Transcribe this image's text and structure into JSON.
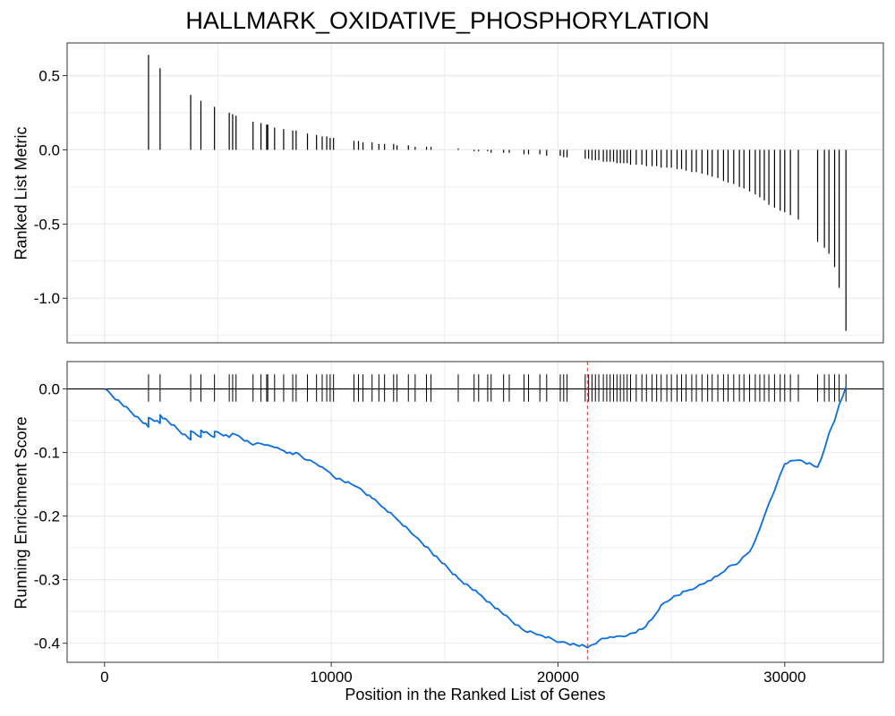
{
  "title": "HALLMARK_OXIDATIVE_PHOSPHORYLATION",
  "chart_data": [
    {
      "panel": "ranked-list-metric",
      "type": "bar",
      "ylabel": "Ranked List Metric",
      "xlabel": "",
      "xlim": [
        -1650,
        34350
      ],
      "ylim": [
        -1.3,
        0.72
      ],
      "y_ticks": [
        0.5,
        0.0,
        -0.5,
        -1.0
      ],
      "y_tick_labels": [
        "0.5",
        "0.0",
        "-0.5",
        "-1.0"
      ],
      "grid": true,
      "hits": [
        {
          "x": 1940,
          "y": 0.64
        },
        {
          "x": 2450,
          "y": 0.55
        },
        {
          "x": 3800,
          "y": 0.37
        },
        {
          "x": 4250,
          "y": 0.33
        },
        {
          "x": 4850,
          "y": 0.29
        },
        {
          "x": 5500,
          "y": 0.25
        },
        {
          "x": 5650,
          "y": 0.24
        },
        {
          "x": 5800,
          "y": 0.23
        },
        {
          "x": 6550,
          "y": 0.19
        },
        {
          "x": 6900,
          "y": 0.18
        },
        {
          "x": 7150,
          "y": 0.17
        },
        {
          "x": 7200,
          "y": 0.17
        },
        {
          "x": 7500,
          "y": 0.15
        },
        {
          "x": 7900,
          "y": 0.14
        },
        {
          "x": 8300,
          "y": 0.13
        },
        {
          "x": 8450,
          "y": 0.13
        },
        {
          "x": 8950,
          "y": 0.11
        },
        {
          "x": 9350,
          "y": 0.1
        },
        {
          "x": 9600,
          "y": 0.09
        },
        {
          "x": 9800,
          "y": 0.09
        },
        {
          "x": 9950,
          "y": 0.08
        },
        {
          "x": 10100,
          "y": 0.08
        },
        {
          "x": 11000,
          "y": 0.06
        },
        {
          "x": 11200,
          "y": 0.06
        },
        {
          "x": 11400,
          "y": 0.05
        },
        {
          "x": 11800,
          "y": 0.05
        },
        {
          "x": 12100,
          "y": 0.04
        },
        {
          "x": 12350,
          "y": 0.04
        },
        {
          "x": 12750,
          "y": 0.04
        },
        {
          "x": 12900,
          "y": 0.03
        },
        {
          "x": 13400,
          "y": 0.03
        },
        {
          "x": 13700,
          "y": 0.02
        },
        {
          "x": 14200,
          "y": 0.02
        },
        {
          "x": 14400,
          "y": 0.02
        },
        {
          "x": 15600,
          "y": 0.01
        },
        {
          "x": 16300,
          "y": -0.01
        },
        {
          "x": 16500,
          "y": -0.01
        },
        {
          "x": 16900,
          "y": -0.01
        },
        {
          "x": 17050,
          "y": -0.02
        },
        {
          "x": 17600,
          "y": -0.02
        },
        {
          "x": 17850,
          "y": -0.02
        },
        {
          "x": 18500,
          "y": -0.03
        },
        {
          "x": 18700,
          "y": -0.03
        },
        {
          "x": 19200,
          "y": -0.03
        },
        {
          "x": 19500,
          "y": -0.04
        },
        {
          "x": 20100,
          "y": -0.04
        },
        {
          "x": 20250,
          "y": -0.05
        },
        {
          "x": 20400,
          "y": -0.05
        },
        {
          "x": 21200,
          "y": -0.06
        },
        {
          "x": 21350,
          "y": -0.06
        },
        {
          "x": 21500,
          "y": -0.07
        },
        {
          "x": 21650,
          "y": -0.07
        },
        {
          "x": 21800,
          "y": -0.07
        },
        {
          "x": 22000,
          "y": -0.08
        },
        {
          "x": 22150,
          "y": -0.08
        },
        {
          "x": 22300,
          "y": -0.08
        },
        {
          "x": 22450,
          "y": -0.08
        },
        {
          "x": 22600,
          "y": -0.09
        },
        {
          "x": 22750,
          "y": -0.09
        },
        {
          "x": 22900,
          "y": -0.09
        },
        {
          "x": 23050,
          "y": -0.09
        },
        {
          "x": 23200,
          "y": -0.1
        },
        {
          "x": 23450,
          "y": -0.1
        },
        {
          "x": 23700,
          "y": -0.1
        },
        {
          "x": 23900,
          "y": -0.11
        },
        {
          "x": 24150,
          "y": -0.11
        },
        {
          "x": 24350,
          "y": -0.11
        },
        {
          "x": 24550,
          "y": -0.12
        },
        {
          "x": 24800,
          "y": -0.12
        },
        {
          "x": 25000,
          "y": -0.12
        },
        {
          "x": 25250,
          "y": -0.13
        },
        {
          "x": 25450,
          "y": -0.13
        },
        {
          "x": 25650,
          "y": -0.14
        },
        {
          "x": 25900,
          "y": -0.15
        },
        {
          "x": 26100,
          "y": -0.15
        },
        {
          "x": 26350,
          "y": -0.16
        },
        {
          "x": 26600,
          "y": -0.17
        },
        {
          "x": 26800,
          "y": -0.18
        },
        {
          "x": 27050,
          "y": -0.19
        },
        {
          "x": 27300,
          "y": -0.21
        },
        {
          "x": 27500,
          "y": -0.22
        },
        {
          "x": 27750,
          "y": -0.23
        },
        {
          "x": 28000,
          "y": -0.25
        },
        {
          "x": 28200,
          "y": -0.26
        },
        {
          "x": 28450,
          "y": -0.28
        },
        {
          "x": 28700,
          "y": -0.3
        },
        {
          "x": 28900,
          "y": -0.32
        },
        {
          "x": 29100,
          "y": -0.34
        },
        {
          "x": 29300,
          "y": -0.37
        },
        {
          "x": 29550,
          "y": -0.39
        },
        {
          "x": 29800,
          "y": -0.41
        },
        {
          "x": 30000,
          "y": -0.42
        },
        {
          "x": 30250,
          "y": -0.44
        },
        {
          "x": 30600,
          "y": -0.47
        },
        {
          "x": 31450,
          "y": -0.62
        },
        {
          "x": 31750,
          "y": -0.66
        },
        {
          "x": 31950,
          "y": -0.7
        },
        {
          "x": 32200,
          "y": -0.79
        },
        {
          "x": 32400,
          "y": -0.93
        },
        {
          "x": 32700,
          "y": -1.22
        }
      ]
    },
    {
      "panel": "running-enrichment-score",
      "type": "line",
      "ylabel": "Running Enrichment Score",
      "xlabel": "Position in the Ranked List of Genes",
      "xlim": [
        -1650,
        34350
      ],
      "ylim": [
        -0.43,
        0.043
      ],
      "x_ticks": [
        0,
        10000,
        20000,
        30000
      ],
      "x_tick_labels": [
        "0",
        "10000",
        "20000",
        "30000"
      ],
      "y_ticks": [
        0.0,
        -0.1,
        -0.2,
        -0.3,
        -0.4
      ],
      "y_tick_labels": [
        "0.0",
        "-0.1",
        "-0.2",
        "-0.3",
        "-0.4"
      ],
      "grid": true,
      "line_color": "#0a6ee0",
      "peak_marker": {
        "x": 21300,
        "color": "#e05a5a"
      },
      "series": [
        {
          "x": [
            0,
            1940,
            1940,
            2450,
            2450,
            3800,
            3800,
            4250,
            4250,
            4850,
            4850,
            5500,
            5650,
            5800,
            6550,
            6900,
            7200,
            7500,
            7900,
            8300,
            8450,
            8950,
            9350,
            9600,
            9950,
            10100,
            11000,
            11200,
            11800,
            12350,
            12900,
            13700,
            14400,
            15600,
            16500,
            17600,
            18500,
            19200,
            20100,
            20400,
            21200,
            21300,
            21800,
            22300,
            22600,
            23050,
            23700,
            24150,
            24550,
            25000,
            25250,
            25650,
            26100,
            26600,
            27050,
            27500,
            28000,
            28450,
            28700,
            28900,
            29100,
            29300,
            29550,
            29800,
            30000,
            30250,
            30600,
            31450,
            31750,
            31950,
            32200,
            32400,
            32700
          ],
          "y": [
            0.0,
            -0.06,
            -0.045,
            -0.054,
            -0.041,
            -0.08,
            -0.066,
            -0.076,
            -0.065,
            -0.076,
            -0.067,
            -0.076,
            -0.07,
            -0.072,
            -0.088,
            -0.086,
            -0.088,
            -0.092,
            -0.097,
            -0.103,
            -0.1,
            -0.112,
            -0.118,
            -0.123,
            -0.132,
            -0.138,
            -0.152,
            -0.155,
            -0.172,
            -0.188,
            -0.205,
            -0.232,
            -0.256,
            -0.298,
            -0.322,
            -0.355,
            -0.38,
            -0.387,
            -0.398,
            -0.4,
            -0.405,
            -0.407,
            -0.396,
            -0.39,
            -0.389,
            -0.388,
            -0.378,
            -0.362,
            -0.34,
            -0.33,
            -0.325,
            -0.318,
            -0.312,
            -0.302,
            -0.294,
            -0.28,
            -0.272,
            -0.256,
            -0.238,
            -0.22,
            -0.2,
            -0.18,
            -0.16,
            -0.135,
            -0.118,
            -0.113,
            -0.112,
            -0.123,
            -0.095,
            -0.07,
            -0.05,
            -0.025,
            0.003
          ]
        }
      ],
      "hit_positions": [
        1940,
        2450,
        3800,
        4250,
        4850,
        5500,
        5650,
        5800,
        6550,
        6900,
        7150,
        7200,
        7500,
        7900,
        8300,
        8450,
        8950,
        9350,
        9600,
        9800,
        9950,
        10100,
        11000,
        11200,
        11400,
        11800,
        12100,
        12350,
        12750,
        12900,
        13400,
        13700,
        14200,
        14400,
        15600,
        16300,
        16500,
        16900,
        17050,
        17600,
        17850,
        18500,
        18700,
        19200,
        19500,
        20100,
        20250,
        20400,
        21200,
        21350,
        21500,
        21650,
        21800,
        22000,
        22150,
        22300,
        22450,
        22600,
        22750,
        22900,
        23050,
        23200,
        23450,
        23700,
        23900,
        24150,
        24350,
        24550,
        24800,
        25000,
        25250,
        25450,
        25650,
        25900,
        26100,
        26350,
        26600,
        26800,
        27050,
        27300,
        27500,
        27750,
        28000,
        28200,
        28450,
        28700,
        28900,
        29100,
        29300,
        29550,
        29800,
        30000,
        30250,
        30600,
        31450,
        31750,
        31950,
        32200,
        32400,
        32700
      ]
    }
  ]
}
